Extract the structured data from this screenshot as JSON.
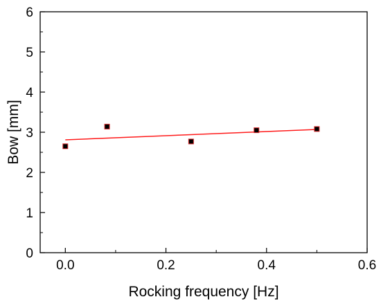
{
  "chart_data": {
    "type": "scatter",
    "xlabel": "Rocking frequency [Hz]",
    "ylabel": "Bow [mm]",
    "xlim": [
      -0.05,
      0.6
    ],
    "ylim": [
      0,
      6
    ],
    "x_ticks": [
      0.0,
      0.2,
      0.4,
      0.6
    ],
    "x_tick_labels": [
      "0.0",
      "0.2",
      "0.4",
      "0.6"
    ],
    "y_ticks": [
      0,
      1,
      2,
      3,
      4,
      5,
      6
    ],
    "y_tick_labels": [
      "0",
      "1",
      "2",
      "3",
      "4",
      "5",
      "6"
    ],
    "grid": false,
    "series": [
      {
        "x": [
          0.0,
          0.083,
          0.25,
          0.38,
          0.5
        ],
        "y": [
          2.65,
          3.14,
          2.77,
          3.05,
          3.08
        ],
        "marker": "square",
        "marker_color": "#000000",
        "marker_edge_color": "#d62728"
      }
    ],
    "fit_line": {
      "x": [
        0.0,
        0.5
      ],
      "y": [
        2.81,
        3.07
      ],
      "color": "#ff1a1a"
    }
  }
}
